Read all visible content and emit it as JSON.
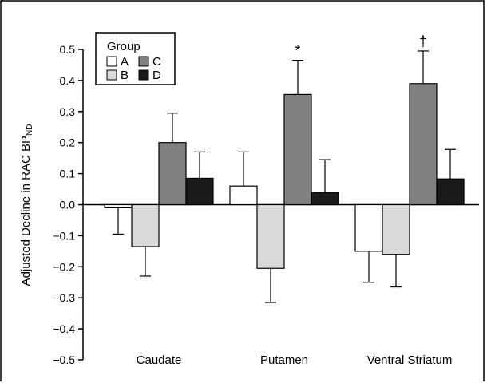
{
  "chart_data": {
    "type": "bar",
    "title": "",
    "xlabel": "",
    "ylabel": "Adjusted Decline in RAC BP",
    "ylabel_subscript": "ND",
    "ylim": [
      -0.5,
      0.5
    ],
    "yticks": [
      0.5,
      0.4,
      0.3,
      0.2,
      0.1,
      0.0,
      -0.1,
      -0.2,
      -0.3,
      -0.4,
      -0.5
    ],
    "ytick_labels": [
      "0.5",
      "0.4",
      "0.3",
      "0.2",
      "0.1",
      "0.0",
      "−0.1",
      "−0.2",
      "−0.3",
      "−0.4",
      "−0.5"
    ],
    "grid": false,
    "categories": [
      "Caudate",
      "Putamen",
      "Ventral Striatum"
    ],
    "legend": {
      "title": "Group",
      "placement": "top-left"
    },
    "series": [
      {
        "name": "A",
        "color": "#ffffff",
        "values": [
          -0.01,
          0.06,
          -0.15
        ],
        "errors": [
          0.085,
          0.11,
          0.1
        ]
      },
      {
        "name": "B",
        "color": "#d9d9d9",
        "values": [
          -0.135,
          -0.205,
          -0.16
        ],
        "errors": [
          0.095,
          0.11,
          0.105
        ]
      },
      {
        "name": "C",
        "color": "#808080",
        "values": [
          0.2,
          0.355,
          0.39
        ],
        "errors": [
          0.095,
          0.11,
          0.105
        ]
      },
      {
        "name": "D",
        "color": "#1a1a1a",
        "values": [
          0.085,
          0.04,
          0.083
        ],
        "errors": [
          0.085,
          0.105,
          0.095
        ]
      }
    ],
    "annotations": [
      {
        "text": "*",
        "category": "Putamen",
        "series": "C"
      },
      {
        "text": "†",
        "category": "Ventral Striatum",
        "series": "C"
      }
    ]
  }
}
